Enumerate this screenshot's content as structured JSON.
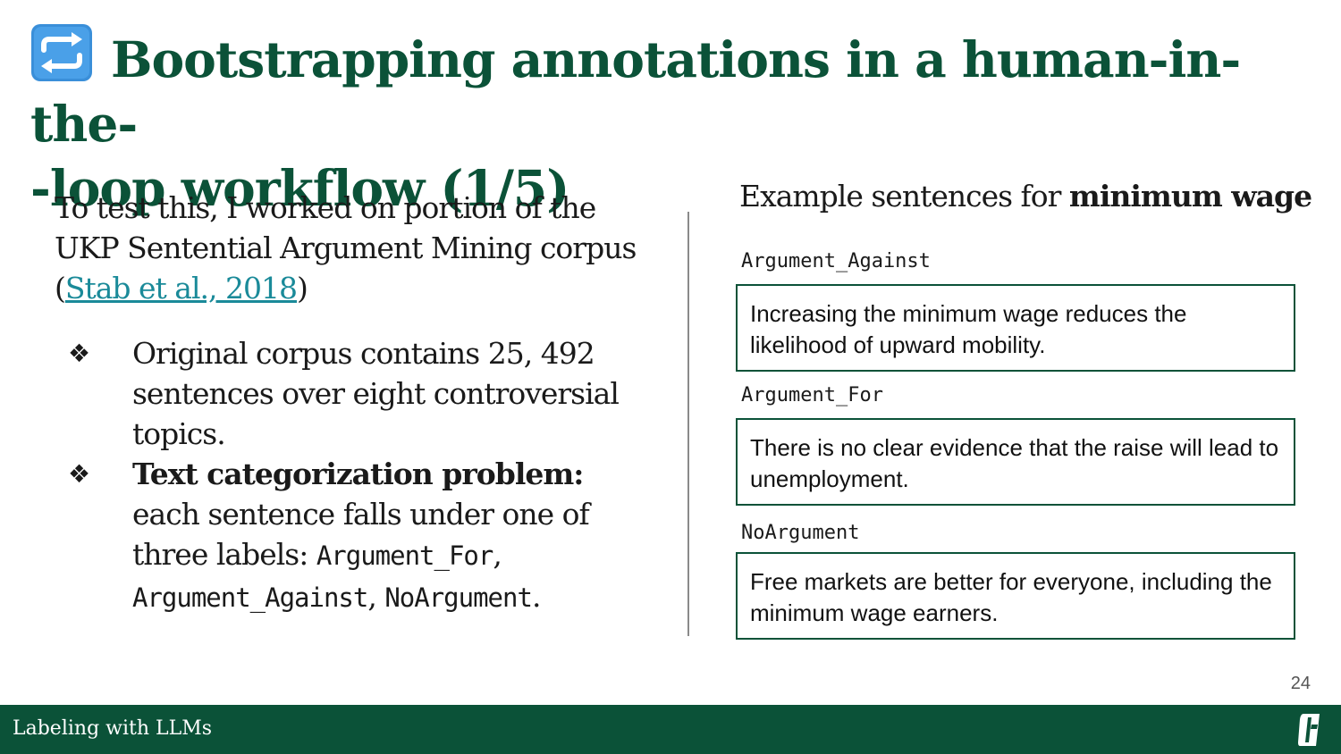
{
  "slide": {
    "title_icon": "repeat-arrows-icon",
    "title": "Bootstrapping annotations in a human-in-the--loop workflow (1/5)",
    "title_line1": "Bootstrapping annotations in a human-in-the-",
    "title_line2": "-loop workflow (1/5)"
  },
  "left": {
    "intro_text": "To test this, I worked on portion of the UKP Sentential Argument Mining corpus (",
    "citation_link": "Stab et al., 2018",
    "intro_close": ")",
    "bullet_icon": "diamond-cluster-icon",
    "bullet1_text": "Original corpus contains 25, 492 sentences over eight controversial topics.",
    "bullet2_bold": "Text categorization problem:",
    "bullet2_text": " each sentence falls under one of three labels: ",
    "bullet2_label_for": "Argument_For",
    "bullet2_sep1": ", ",
    "bullet2_label_against": "Argument_Against",
    "bullet2_sep2": ", ",
    "bullet2_label_none": "NoArgument",
    "bullet2_end": "."
  },
  "right": {
    "heading_prefix": "Example sentences for ",
    "heading_topic": "minimum wage",
    "examples": [
      {
        "label": "Argument_Against",
        "sentence": "Increasing the minimum wage reduces the likelihood of upward mobility."
      },
      {
        "label": "Argument_For",
        "sentence": "There is no clear evidence that the raise will lead to unemployment."
      },
      {
        "label": "NoArgument",
        "sentence": "Free markets are better for everyone, including the minimum wage earners."
      }
    ]
  },
  "page_number": "24",
  "footer": {
    "text": "Labeling with LLMs",
    "logo_icon": "university-logo-icon"
  },
  "colors": {
    "brand_green": "#0b5238",
    "link_teal": "#1a8a99"
  }
}
